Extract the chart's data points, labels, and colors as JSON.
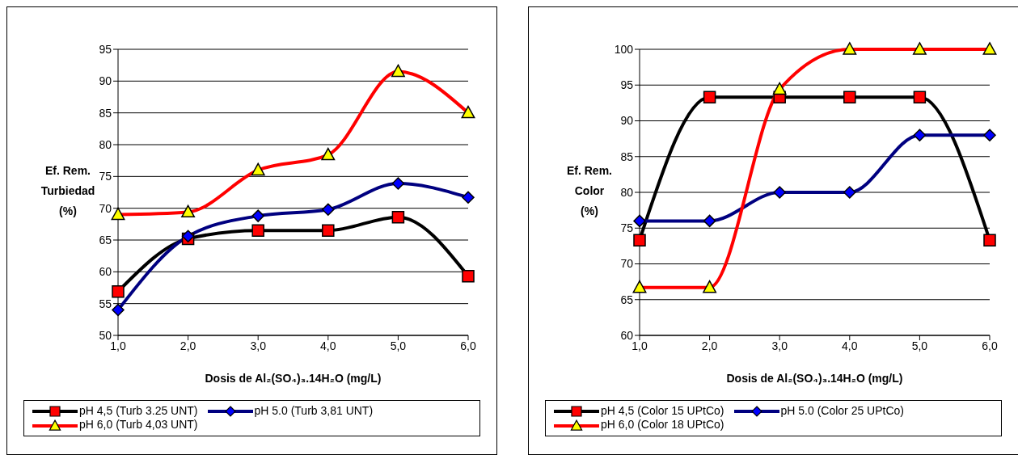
{
  "chart_data": [
    {
      "type": "line",
      "xlabel": "Dosis de Al₂(SO₄)₃.14H₂O (mg/L)",
      "ylabel": "Ef. Rem.\nTurbiedad\n(%)",
      "categories": [
        "1,0",
        "2,0",
        "3,0",
        "4,0",
        "5,0",
        "6,0"
      ],
      "ylim": [
        50,
        95
      ],
      "yticks": [
        50,
        55,
        60,
        65,
        70,
        75,
        80,
        85,
        90,
        95
      ],
      "grid": "y",
      "legend": "bottom",
      "line_style": "solid",
      "series": [
        {
          "name": "pH 4,5 (Turb 3.25 UNT)",
          "color": "#000000",
          "marker": "square",
          "colors": [
            "#ff0000",
            "#ff0000",
            "#ff0000",
            "#ff0000",
            "#ff0000",
            "#ff0000"
          ],
          "values": [
            56.9,
            65.2,
            66.5,
            66.5,
            68.6,
            59.3
          ]
        },
        {
          "name": "pH 5.0 (Turb 3,81 UNT)",
          "color": "#000080",
          "marker": "diamond",
          "colors": [
            "#0000ff",
            "#0000ff",
            "#0000ff",
            "#0000ff",
            "#0000ff",
            "#0000ff"
          ],
          "values": [
            54.0,
            65.6,
            68.8,
            69.8,
            73.9,
            71.7
          ]
        },
        {
          "name": "pH 6,0 (Turb 4,03 UNT)",
          "color": "#ff0000",
          "marker": "triangle",
          "colors": [
            "#ffff00",
            "#ffff00",
            "#ffff00",
            "#ffff00",
            "#ffff00",
            "#ffff00"
          ],
          "values": [
            69.0,
            69.4,
            76.0,
            78.4,
            91.5,
            85.0
          ]
        }
      ]
    },
    {
      "type": "line",
      "xlabel": "Dosis de Al₂(SO₄)₃.14H₂O (mg/L)",
      "ylabel": "Ef. Rem.\nColor\n(%)",
      "categories": [
        "1,0",
        "2,0",
        "3,0",
        "4,0",
        "5,0",
        "6,0"
      ],
      "ylim": [
        60,
        100
      ],
      "yticks": [
        60,
        65,
        70,
        75,
        80,
        85,
        90,
        95,
        100
      ],
      "grid": "y",
      "legend": "bottom",
      "line_style": "solid",
      "series": [
        {
          "name": "pH 4,5 (Color 15 UPtCo)",
          "color": "#000000",
          "marker": "square",
          "colors": [
            "#ff0000",
            "#ff0000",
            "#ff0000",
            "#ff0000",
            "#ff0000",
            "#ff0000"
          ],
          "values": [
            73.3,
            93.3,
            93.3,
            93.3,
            93.3,
            73.3
          ]
        },
        {
          "name": "pH 5.0 (Color 25 UPtCo)",
          "color": "#000080",
          "marker": "diamond",
          "colors": [
            "#0000ff",
            "#0000ff",
            "#0000ff",
            "#0000ff",
            "#0000ff",
            "#0000ff"
          ],
          "values": [
            76,
            76,
            80,
            80,
            88,
            88
          ]
        },
        {
          "name": "pH 6,0 (Color 18 UPtCo)",
          "color": "#ff0000",
          "marker": "triangle",
          "colors": [
            "#ffff00",
            "#ffff00",
            "#ffff00",
            "#ffff00",
            "#ffff00",
            "#ffff00"
          ],
          "values": [
            66.7,
            66.7,
            94.4,
            100,
            100,
            100
          ]
        }
      ]
    }
  ]
}
